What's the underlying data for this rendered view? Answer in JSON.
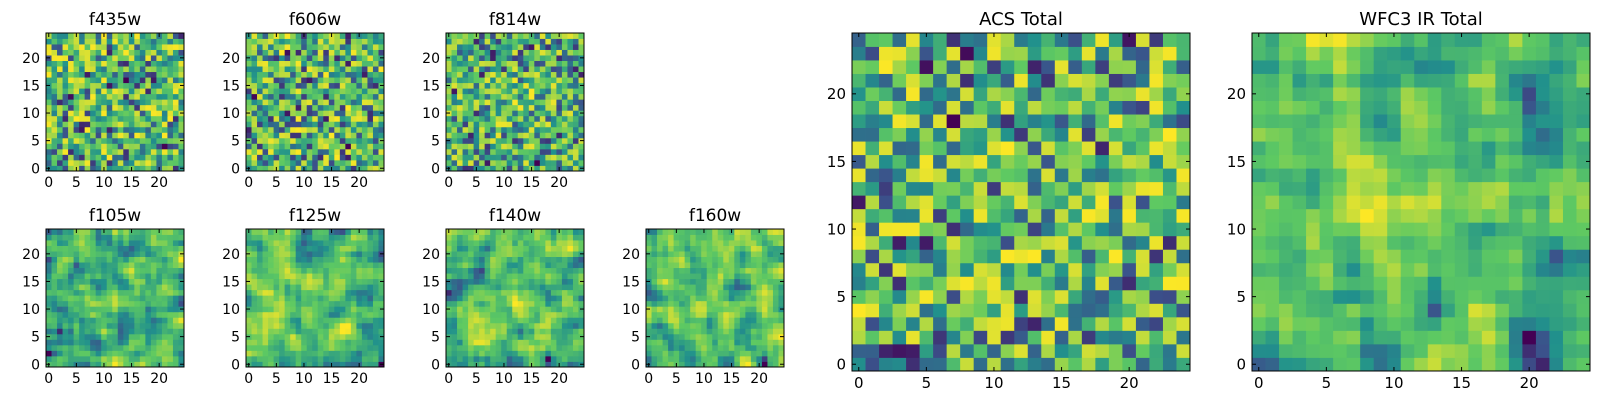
{
  "figure": {
    "colormap": [
      "#440154",
      "#3b528b",
      "#21918c",
      "#5ec962",
      "#fde725"
    ]
  },
  "chart_data": [
    {
      "type": "heatmap",
      "title": "f435w",
      "xticks": [
        0,
        5,
        10,
        15,
        20
      ],
      "yticks": [
        0,
        5,
        10,
        15,
        20
      ],
      "size": 25,
      "feature": "noise"
    },
    {
      "type": "heatmap",
      "title": "f606w",
      "xticks": [
        0,
        5,
        10,
        15,
        20
      ],
      "yticks": [
        0,
        5,
        10,
        15,
        20
      ],
      "size": 25,
      "feature": "noise"
    },
    {
      "type": "heatmap",
      "title": "f814w",
      "xticks": [
        0,
        5,
        10,
        15,
        20
      ],
      "yticks": [
        0,
        5,
        10,
        15,
        20
      ],
      "size": 25,
      "feature": "noise with faint central band"
    },
    {
      "type": "heatmap",
      "title": "f105w",
      "xticks": [
        0,
        5,
        10,
        15,
        20
      ],
      "yticks": [
        0,
        5,
        10,
        15,
        20
      ],
      "size": 25,
      "feature": "correlated noise"
    },
    {
      "type": "heatmap",
      "title": "f125w",
      "xticks": [
        0,
        5,
        10,
        15,
        20
      ],
      "yticks": [
        0,
        5,
        10,
        15,
        20
      ],
      "size": 25,
      "feature": "correlated noise"
    },
    {
      "type": "heatmap",
      "title": "f140w",
      "xticks": [
        0,
        5,
        10,
        15,
        20
      ],
      "yticks": [
        0,
        5,
        10,
        15,
        20
      ],
      "size": 25,
      "feature": "correlated noise"
    },
    {
      "type": "heatmap",
      "title": "f160w",
      "xticks": [
        0,
        5,
        10,
        15,
        20
      ],
      "yticks": [
        0,
        5,
        10,
        15,
        20
      ],
      "size": 25,
      "feature": "correlated noise"
    },
    {
      "type": "heatmap",
      "title": "ACS Total",
      "xticks": [
        0,
        5,
        10,
        15,
        20
      ],
      "yticks": [
        0,
        5,
        10,
        15,
        20
      ],
      "size": 25,
      "feature": "noise"
    },
    {
      "type": "heatmap",
      "title": "WFC3 IR Total",
      "xticks": [
        0,
        5,
        10,
        15,
        20
      ],
      "yticks": [
        0,
        5,
        10,
        15,
        20
      ],
      "size": 25,
      "feature": "bright source near center (x~12, y~12)"
    }
  ]
}
